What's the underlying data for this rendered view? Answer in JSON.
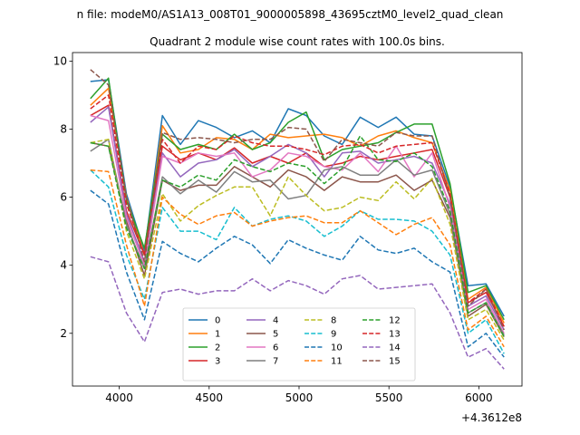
{
  "figure": {
    "suptitle": "n file: modeM0/AS1A13_008T01_9000005898_43695cztM0_level2_quad_clean",
    "title": "Quadrant 2 module wise count rates with 100.0s bins.",
    "offset_text": "+4.3612e8"
  },
  "chart_data": {
    "type": "line",
    "title": "Quadrant 2 module wise count rates with 100.0s bins.",
    "xlabel": "",
    "ylabel": "",
    "x_offset_label": "+4.3612e8",
    "xlim": [
      3740,
      6240
    ],
    "ylim": [
      0.45,
      10.25
    ],
    "xticks": [
      4000,
      4500,
      5000,
      5500,
      6000
    ],
    "yticks": [
      2,
      4,
      6,
      8,
      10
    ],
    "grid": false,
    "legend": {
      "placement": "lower-center",
      "ncol": 4
    },
    "x": [
      3840,
      3940,
      4040,
      4140,
      4240,
      4340,
      4440,
      4540,
      4640,
      4740,
      4840,
      4940,
      5040,
      5140,
      5240,
      5340,
      5440,
      5540,
      5640,
      5740,
      5840,
      5940,
      6040,
      6140
    ],
    "series": [
      {
        "name": "0",
        "color": "#1f77b4",
        "dash": "solid",
        "values": [
          9.4,
          9.45,
          6.1,
          4.4,
          8.4,
          7.55,
          8.25,
          8.05,
          7.75,
          7.95,
          7.6,
          8.6,
          8.4,
          7.8,
          7.55,
          8.35,
          8.05,
          8.35,
          7.85,
          7.8,
          6.3,
          3.4,
          3.45,
          2.5
        ]
      },
      {
        "name": "1",
        "color": "#ff7f0e",
        "dash": "solid",
        "values": [
          8.7,
          9.2,
          6.0,
          4.3,
          8.1,
          7.3,
          7.4,
          7.75,
          7.7,
          7.4,
          7.85,
          7.75,
          7.8,
          7.85,
          7.75,
          7.5,
          7.8,
          7.95,
          7.75,
          7.6,
          6.2,
          3.0,
          3.35,
          2.3
        ]
      },
      {
        "name": "2",
        "color": "#2ca02c",
        "dash": "solid",
        "values": [
          8.9,
          9.5,
          5.9,
          4.5,
          7.85,
          7.4,
          7.55,
          7.4,
          7.85,
          7.4,
          7.6,
          8.2,
          8.5,
          7.1,
          7.4,
          7.5,
          7.6,
          7.9,
          8.15,
          8.15,
          6.4,
          3.2,
          3.4,
          2.4
        ]
      },
      {
        "name": "3",
        "color": "#d62728",
        "dash": "solid",
        "values": [
          8.4,
          8.7,
          5.6,
          4.3,
          7.5,
          7.1,
          7.3,
          7.1,
          7.45,
          7.0,
          7.2,
          7.0,
          7.3,
          6.9,
          7.0,
          7.2,
          7.1,
          7.2,
          7.3,
          7.4,
          6.0,
          2.9,
          3.2,
          2.2
        ]
      },
      {
        "name": "4",
        "color": "#9467bd",
        "dash": "solid",
        "values": [
          8.2,
          8.65,
          5.5,
          4.1,
          7.3,
          6.6,
          7.0,
          7.1,
          7.4,
          6.9,
          7.2,
          7.55,
          7.3,
          6.6,
          7.3,
          7.35,
          7.0,
          7.1,
          7.2,
          7.0,
          5.8,
          2.8,
          3.1,
          2.1
        ]
      },
      {
        "name": "5",
        "color": "#8c564b",
        "dash": "solid",
        "values": [
          7.6,
          7.5,
          5.3,
          3.7,
          6.5,
          6.2,
          6.35,
          6.35,
          6.9,
          6.6,
          6.3,
          6.8,
          6.6,
          6.2,
          6.6,
          6.45,
          6.45,
          6.65,
          6.2,
          6.5,
          5.4,
          2.5,
          2.85,
          1.9
        ]
      },
      {
        "name": "6",
        "color": "#e377c2",
        "dash": "solid",
        "values": [
          8.4,
          8.25,
          5.4,
          4.0,
          7.2,
          7.0,
          7.3,
          7.2,
          7.3,
          6.6,
          6.8,
          7.3,
          7.2,
          6.9,
          6.8,
          7.3,
          6.75,
          7.5,
          6.6,
          7.3,
          5.7,
          2.7,
          3.0,
          2.0
        ]
      },
      {
        "name": "7",
        "color": "#7f7f7f",
        "dash": "solid",
        "values": [
          7.35,
          7.7,
          5.2,
          3.9,
          6.6,
          6.1,
          6.5,
          6.15,
          6.75,
          6.45,
          6.5,
          5.95,
          6.05,
          6.8,
          6.9,
          6.65,
          6.65,
          7.1,
          6.65,
          6.8,
          5.5,
          2.6,
          2.9,
          1.95
        ]
      },
      {
        "name": "8",
        "color": "#bcbd22",
        "dash": "dashed",
        "values": [
          7.6,
          7.7,
          5.0,
          3.6,
          6.1,
          5.3,
          5.75,
          6.05,
          6.3,
          6.3,
          5.45,
          6.6,
          6.05,
          5.6,
          5.7,
          6.0,
          5.9,
          6.45,
          5.95,
          6.55,
          5.2,
          2.4,
          2.7,
          1.8
        ]
      },
      {
        "name": "9",
        "color": "#17becf",
        "dash": "dashed",
        "values": [
          6.8,
          6.3,
          4.3,
          3.0,
          5.7,
          5.0,
          5.0,
          4.75,
          5.7,
          5.15,
          5.35,
          5.45,
          5.3,
          4.85,
          5.15,
          5.6,
          5.35,
          5.35,
          5.3,
          5.0,
          4.3,
          2.0,
          2.4,
          1.4
        ]
      },
      {
        "name": "10",
        "color": "#1f77b4",
        "dash": "dashed",
        "values": [
          6.2,
          5.8,
          3.8,
          2.4,
          4.7,
          4.35,
          4.1,
          4.5,
          4.85,
          4.6,
          4.05,
          4.75,
          4.5,
          4.3,
          4.15,
          4.85,
          4.45,
          4.35,
          4.5,
          4.1,
          3.8,
          1.6,
          2.0,
          1.3
        ]
      },
      {
        "name": "11",
        "color": "#ff7f0e",
        "dash": "dashed",
        "values": [
          6.8,
          6.75,
          4.6,
          2.8,
          6.0,
          5.5,
          5.2,
          5.45,
          5.55,
          5.15,
          5.3,
          5.4,
          5.45,
          5.25,
          5.25,
          5.6,
          5.25,
          4.9,
          5.2,
          5.4,
          4.6,
          2.1,
          2.5,
          1.6
        ]
      },
      {
        "name": "12",
        "color": "#2ca02c",
        "dash": "dashed",
        "values": [
          7.6,
          7.5,
          5.1,
          3.9,
          6.5,
          6.3,
          6.65,
          6.5,
          7.1,
          6.9,
          6.75,
          7.0,
          6.9,
          6.4,
          6.85,
          7.8,
          7.1,
          7.05,
          7.3,
          6.9,
          5.6,
          2.6,
          2.9,
          1.9
        ]
      },
      {
        "name": "13",
        "color": "#d62728",
        "dash": "dashed",
        "values": [
          8.6,
          9.0,
          5.8,
          4.3,
          7.7,
          7.0,
          7.5,
          7.4,
          7.8,
          7.6,
          7.5,
          7.5,
          7.4,
          7.25,
          7.5,
          7.55,
          7.3,
          7.5,
          7.55,
          7.6,
          6.1,
          2.9,
          3.3,
          2.2
        ]
      },
      {
        "name": "14",
        "color": "#9467bd",
        "dash": "dashed",
        "values": [
          4.25,
          4.1,
          2.6,
          1.75,
          3.2,
          3.3,
          3.15,
          3.25,
          3.25,
          3.6,
          3.25,
          3.55,
          3.4,
          3.15,
          3.6,
          3.7,
          3.3,
          3.35,
          3.4,
          3.45,
          2.6,
          1.3,
          1.55,
          0.95
        ]
      },
      {
        "name": "15",
        "color": "#8c564b",
        "dash": "dashed",
        "values": [
          9.75,
          9.3,
          6.0,
          4.1,
          7.9,
          7.7,
          7.75,
          7.7,
          7.6,
          7.7,
          7.7,
          8.05,
          8.0,
          7.05,
          7.7,
          7.6,
          7.5,
          7.9,
          7.8,
          7.8,
          6.0,
          2.8,
          3.3,
          2.1
        ]
      }
    ]
  }
}
